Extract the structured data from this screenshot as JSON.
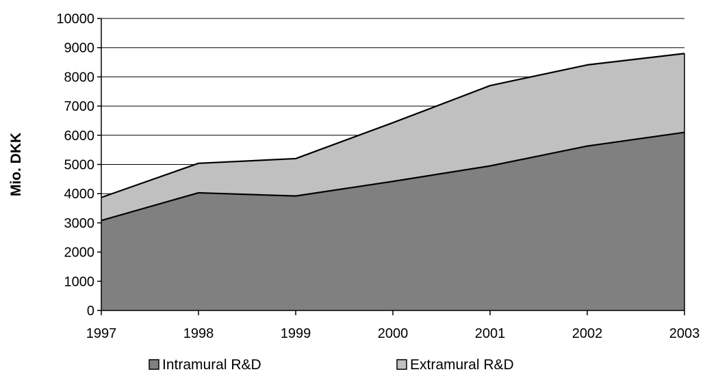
{
  "chart_data": {
    "type": "area",
    "stacked": true,
    "x": [
      1997,
      1998,
      1999,
      2000,
      2001,
      2002,
      2003
    ],
    "series": [
      {
        "name": "Intramural R&D",
        "values": [
          3080,
          4030,
          3920,
          4420,
          4950,
          5630,
          6100
        ],
        "color": "#808080"
      },
      {
        "name": "Extramural R&D",
        "values": [
          790,
          1010,
          1280,
          2010,
          2750,
          2780,
          2700
        ],
        "color": "#c0c0c0"
      }
    ],
    "xlabel": "",
    "ylabel": "Mio. DKK",
    "ylim": [
      0,
      10000
    ],
    "yticks": [
      0,
      1000,
      2000,
      3000,
      4000,
      5000,
      6000,
      7000,
      8000,
      9000,
      10000
    ],
    "grid": true,
    "legend": "bottom"
  }
}
